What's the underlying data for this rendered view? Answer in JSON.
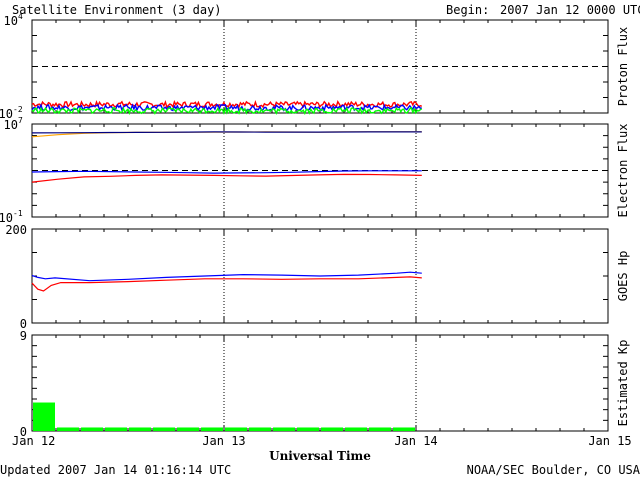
{
  "header": {
    "title": "Satellite Environment (3 day)",
    "begin_label": "Begin:",
    "begin_value": "2007 Jan 12 0000 UTC"
  },
  "footer": {
    "updated": "Updated 2007 Jan 14 01:16:14 UTC",
    "credit": "NOAA/SEC Boulder, CO USA"
  },
  "x_axis": {
    "label": "Universal Time",
    "ticks": [
      "Jan 12",
      "Jan 13",
      "Jan 14",
      "Jan 15"
    ],
    "day_range": [
      0,
      3
    ],
    "data_end_day": 2.03
  },
  "colors": {
    "red": "#ff0000",
    "blue": "#0000ff",
    "green": "#00ff00",
    "orange": "#ffa500",
    "navy": "#000080",
    "axis": "#000000"
  },
  "chart_data": [
    {
      "type": "line",
      "ylabel": "Proton Flux",
      "scale": "log",
      "ylim": [
        0.01,
        10000
      ],
      "y_ticks": [
        {
          "base": "10",
          "exp": "4",
          "value": 10000
        },
        {
          "base": "10",
          "exp": "-2",
          "value": 0.01
        }
      ],
      "threshold": 10,
      "noisy": true,
      "series": [
        {
          "color": "red",
          "values": [
            0.038,
            0.036,
            0.035,
            0.037,
            0.036,
            0.035,
            0.036,
            0.038,
            0.037,
            0.036,
            0.035,
            0.036,
            0.037,
            0.036,
            0.036,
            0.037
          ]
        },
        {
          "color": "blue",
          "values": [
            0.023,
            0.022,
            0.022,
            0.023,
            0.022,
            0.021,
            0.022,
            0.023,
            0.022,
            0.022,
            0.021,
            0.022,
            0.023,
            0.022,
            0.022,
            0.022
          ]
        },
        {
          "color": "green",
          "values": [
            0.015,
            0.014,
            0.014,
            0.015,
            0.014,
            0.014,
            0.014,
            0.015,
            0.014,
            0.014,
            0.014,
            0.014,
            0.015,
            0.014,
            0.014,
            0.015
          ]
        }
      ]
    },
    {
      "type": "line",
      "ylabel": "Electron Flux",
      "scale": "log",
      "ylim": [
        0.1,
        10000000
      ],
      "y_ticks": [
        {
          "base": "10",
          "exp": "7",
          "value": 10000000
        },
        {
          "base": "10",
          "exp": "-1",
          "value": 0.1
        }
      ],
      "threshold": 1000,
      "noisy": false,
      "series": [
        {
          "color": "orange",
          "values": [
            800000,
            1200000,
            1600000,
            1800000,
            1900000,
            1950000,
            2000000,
            2000000,
            2050000,
            2100000,
            2050000,
            2000000,
            2100000,
            2150000,
            2100000,
            2100000
          ]
        },
        {
          "color": "navy",
          "values": [
            1700000,
            1750000,
            1800000,
            1850000,
            1900000,
            1950000,
            2000000,
            2100000,
            2050000,
            2000000,
            2000000,
            2000000,
            2050000,
            2100000,
            2100000,
            2100000
          ]
        },
        {
          "color": "blue",
          "values": [
            750,
            800,
            850,
            800,
            750,
            700,
            650,
            600,
            620,
            650,
            700,
            800,
            900,
            950,
            950,
            950
          ]
        },
        {
          "color": "red",
          "values": [
            100,
            180,
            280,
            320,
            380,
            420,
            400,
            380,
            350,
            330,
            370,
            420,
            460,
            450,
            420,
            380
          ]
        }
      ]
    },
    {
      "type": "line",
      "ylabel": "GOES Hp",
      "scale": "linear",
      "ylim": [
        0,
        200
      ],
      "y_ticks": [
        {
          "base": "200",
          "exp": "",
          "value": 200
        },
        {
          "base": "0",
          "exp": "",
          "value": 0
        }
      ],
      "series": [
        {
          "color": "blue",
          "x": [
            0,
            0.03,
            0.07,
            0.12,
            0.3,
            0.5,
            0.7,
            0.9,
            1.1,
            1.3,
            1.5,
            1.7,
            1.9,
            1.97,
            2.03
          ],
          "values": [
            101,
            97,
            94,
            96,
            90,
            93,
            97,
            100,
            103,
            102,
            100,
            102,
            106,
            108,
            106
          ]
        },
        {
          "color": "red",
          "x": [
            0,
            0.03,
            0.06,
            0.1,
            0.15,
            0.3,
            0.5,
            0.7,
            0.9,
            1.1,
            1.3,
            1.5,
            1.7,
            1.9,
            1.97,
            2.03
          ],
          "values": [
            85,
            72,
            68,
            80,
            86,
            86,
            88,
            91,
            94,
            94,
            93,
            94,
            94,
            97,
            98,
            96
          ]
        }
      ]
    },
    {
      "type": "bar",
      "ylabel": "Estimated Kp",
      "scale": "linear",
      "ylim": [
        0,
        9
      ],
      "y_ticks": [
        {
          "base": "9",
          "exp": "",
          "value": 9
        },
        {
          "base": "0",
          "exp": "",
          "value": 0
        }
      ],
      "bar_width_days": 0.125,
      "color": "green",
      "values": [
        2.67,
        0.33,
        0.33,
        0.33,
        0.33,
        0.33,
        0.33,
        0.33,
        0.33,
        0.33,
        0.33,
        0.33,
        0.33,
        0.33,
        0.33,
        0.33
      ]
    }
  ]
}
